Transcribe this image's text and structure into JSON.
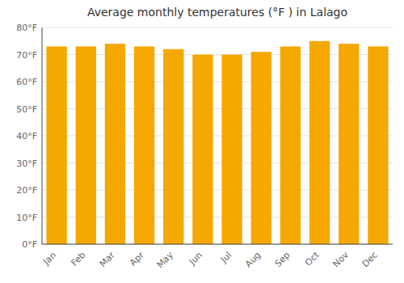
{
  "chart_data": {
    "type": "bar",
    "title": "Average monthly temperatures (°F ) in Lalago",
    "categories": [
      "Jan",
      "Feb",
      "Mar",
      "Apr",
      "May",
      "Jun",
      "Jul",
      "Aug",
      "Sep",
      "Oct",
      "Nov",
      "Dec"
    ],
    "values": [
      73,
      73,
      74,
      73,
      72,
      70,
      70,
      71,
      73,
      75,
      74,
      73
    ],
    "color": "#F5A800",
    "ylim": [
      0,
      80
    ],
    "yticks": [
      {
        "value": 0,
        "label": "0°F"
      },
      {
        "value": 10,
        "label": "10°F"
      },
      {
        "value": 20,
        "label": "20°F"
      },
      {
        "value": 30,
        "label": "30°F"
      },
      {
        "value": 40,
        "label": "40°F"
      },
      {
        "value": 50,
        "label": "50°F"
      },
      {
        "value": 60,
        "label": "60°F"
      },
      {
        "value": 70,
        "label": "70°F"
      },
      {
        "value": 80,
        "label": "80°F"
      }
    ],
    "grid": true
  }
}
